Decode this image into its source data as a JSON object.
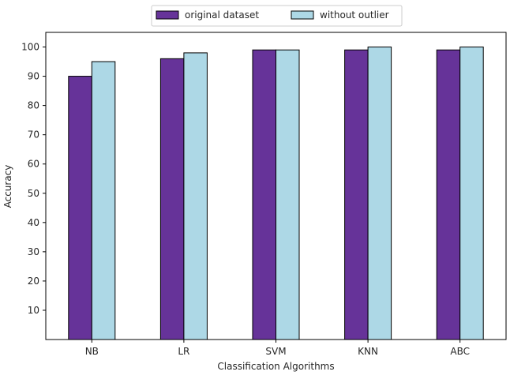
{
  "chart_data": {
    "type": "bar",
    "categories": [
      "NB",
      "LR",
      "SVM",
      "KNN",
      "ABC"
    ],
    "series": [
      {
        "name": "original dataset",
        "values": [
          90,
          96,
          99,
          99,
          99
        ],
        "color": "#663399"
      },
      {
        "name": "without outlier",
        "values": [
          95,
          98,
          99,
          100,
          100
        ],
        "color": "#add8e6"
      }
    ],
    "xlabel": "Classification Algorithms",
    "ylabel": "Accuracy",
    "ylim": [
      0,
      105
    ],
    "yticks": [
      10,
      20,
      30,
      40,
      50,
      60,
      70,
      80,
      90,
      100
    ],
    "grid": false,
    "legend_position": "top-center",
    "bar_edge_color": "#000000"
  }
}
